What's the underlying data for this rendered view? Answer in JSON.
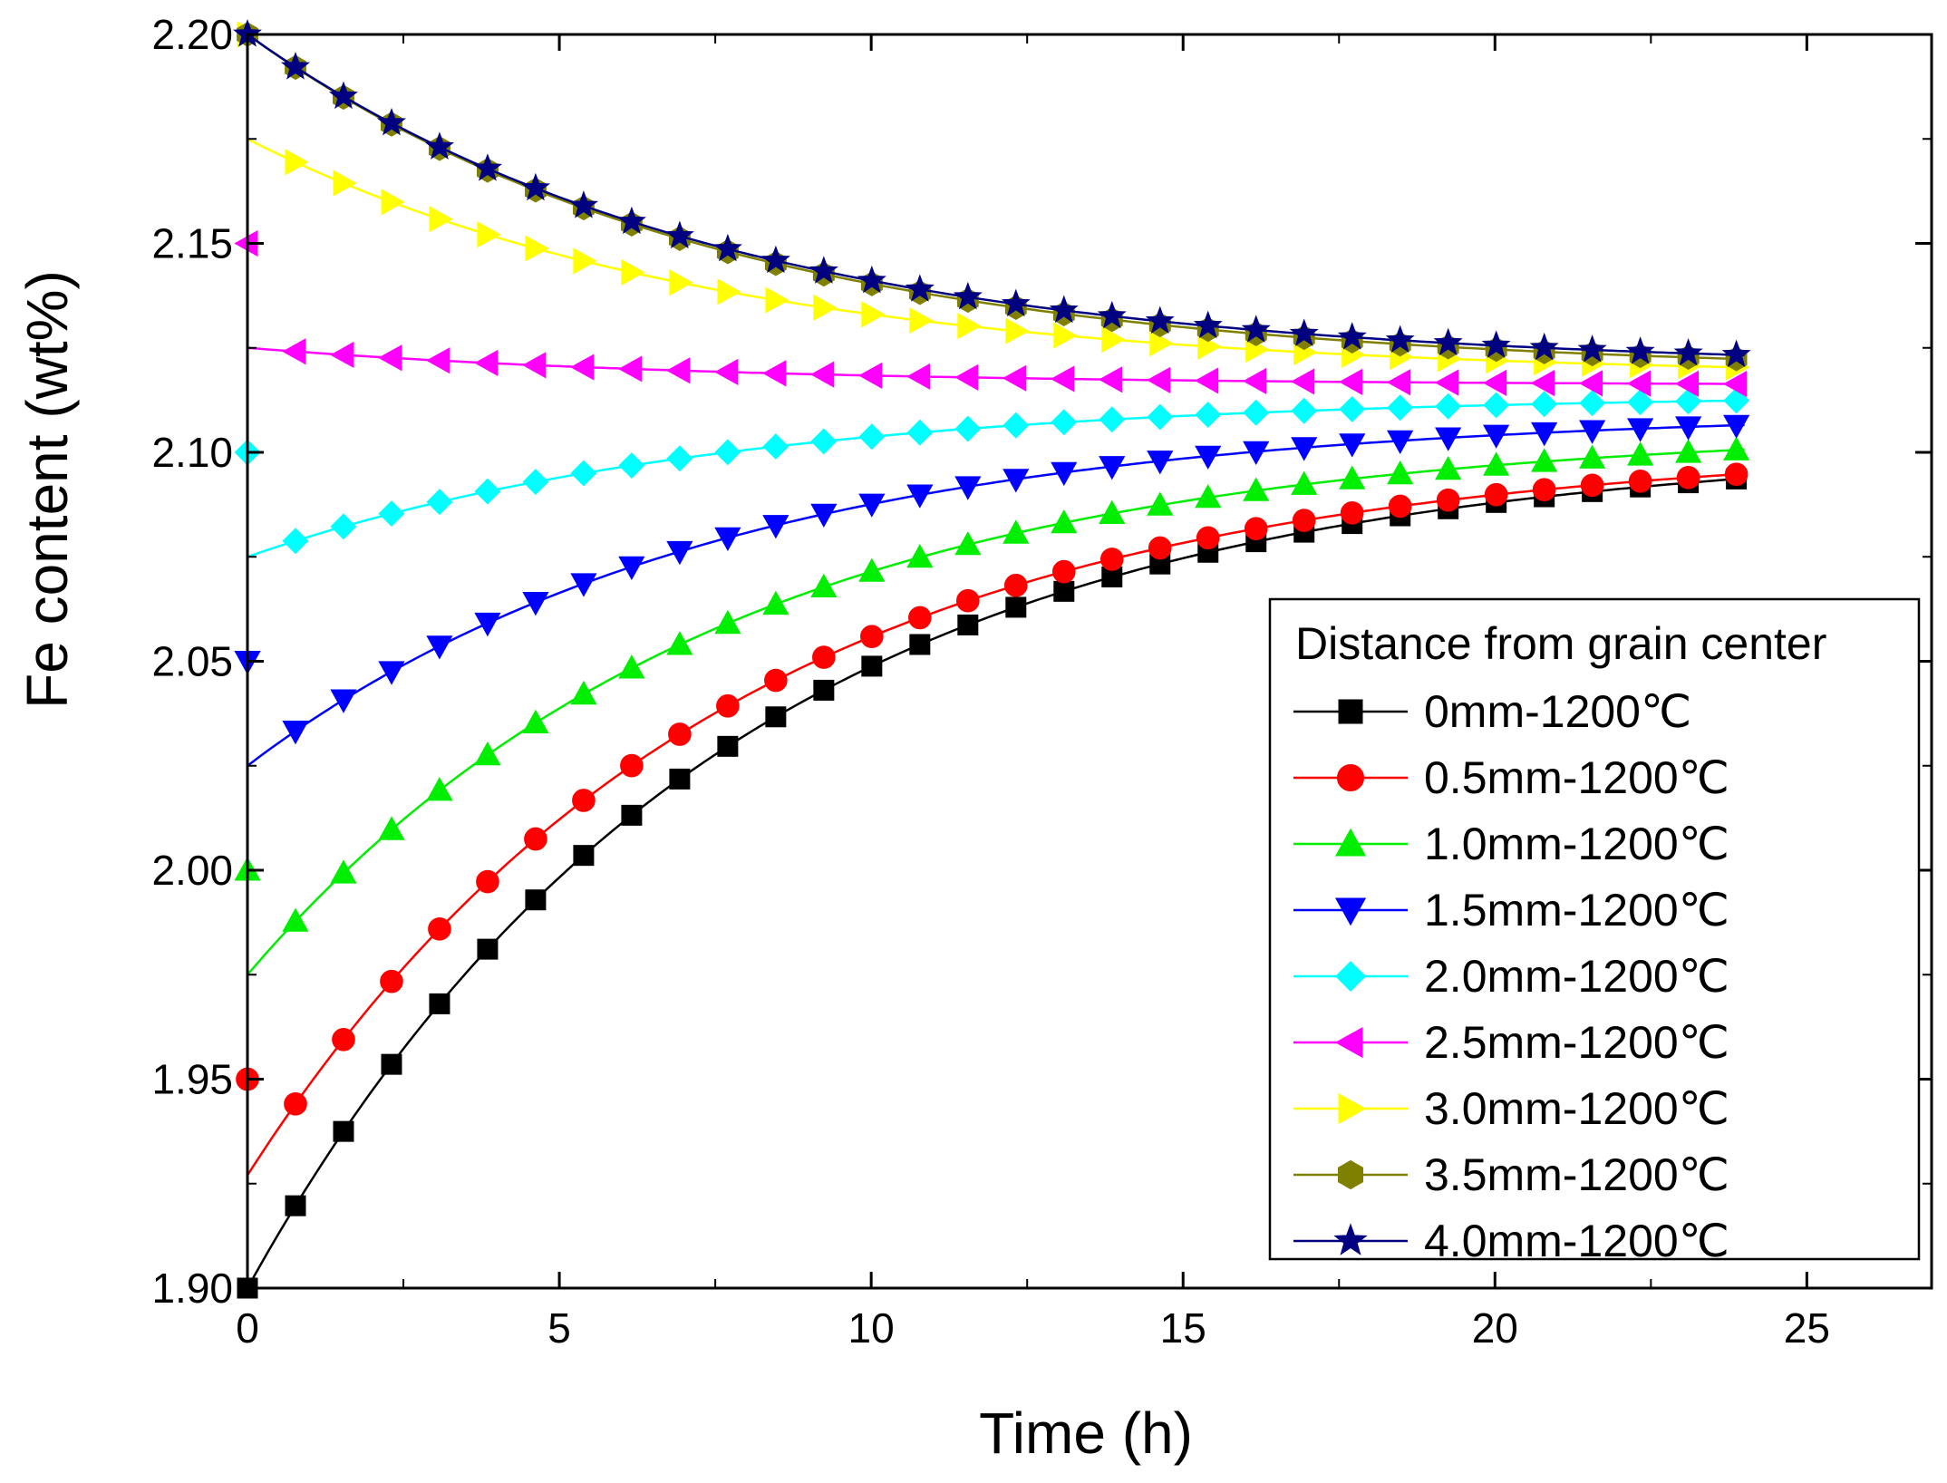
{
  "chart_data": {
    "type": "line",
    "xlabel": "Time (h)",
    "ylabel": "Fe content (wt%)",
    "xlim": [
      0,
      27
    ],
    "ylim": [
      1.9,
      2.2
    ],
    "xticks": [
      0,
      5,
      10,
      15,
      20,
      25
    ],
    "xtick_labels": [
      "0",
      "5",
      "10",
      "15",
      "20",
      "25"
    ],
    "yticks": [
      1.9,
      1.95,
      2.0,
      2.05,
      2.1,
      2.15,
      2.2
    ],
    "ytick_labels": [
      "1.90",
      "1.95",
      "2.00",
      "2.05",
      "2.10",
      "2.15",
      "2.20"
    ],
    "grid": false,
    "legend_position": "lower-right",
    "legend_title": "Distance from grain center",
    "marker_spacing_h": 0.77,
    "t_end": 24,
    "series": [
      {
        "name": "0mm-1200℃",
        "color": "#000000",
        "marker": "square",
        "initial": 1.9,
        "start": 1.9,
        "final": 2.102,
        "tau": 7.5
      },
      {
        "name": "0.5mm-1200℃",
        "color": "#ff0000",
        "marker": "circle",
        "initial": 1.95,
        "start": 1.927,
        "final": 2.102,
        "tau": 7.5
      },
      {
        "name": "1.0mm-1200℃",
        "color": "#00ee00",
        "marker": "triangle-up",
        "initial": 2.0,
        "start": 1.975,
        "final": 2.106,
        "tau": 7.5
      },
      {
        "name": "1.5mm-1200℃",
        "color": "#0000ff",
        "marker": "triangle-down",
        "initial": 2.05,
        "start": 2.025,
        "final": 2.11,
        "tau": 7.5
      },
      {
        "name": "2.0mm-1200℃",
        "color": "#00ffff",
        "marker": "diamond",
        "initial": 2.1,
        "start": 2.075,
        "final": 2.114,
        "tau": 7.5
      },
      {
        "name": "2.5mm-1200℃",
        "color": "#ff00ff",
        "marker": "triangle-left",
        "initial": 2.15,
        "start": 2.125,
        "final": 2.116,
        "tau": 7.5
      },
      {
        "name": "3.0mm-1200℃",
        "color": "#ffff00",
        "marker": "triangle-right",
        "initial": 2.2,
        "start": 2.175,
        "final": 2.118,
        "tau": 7.5
      },
      {
        "name": "3.5mm-1200℃",
        "color": "#808000",
        "marker": "hexagon",
        "initial": 2.2,
        "start": 2.2,
        "final": 2.119,
        "tau": 7.5
      },
      {
        "name": "4.0mm-1200℃",
        "color": "#000080",
        "marker": "star",
        "initial": 2.2,
        "start": 2.2,
        "final": 2.12,
        "tau": 7.5
      }
    ]
  }
}
